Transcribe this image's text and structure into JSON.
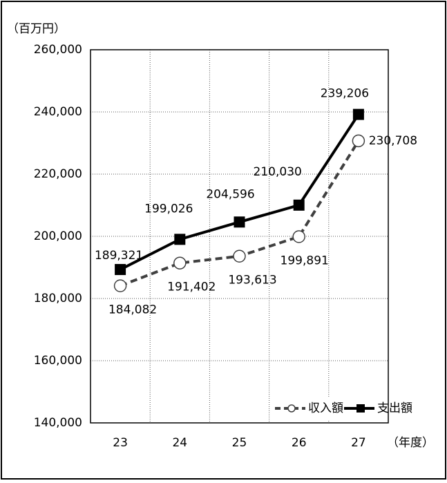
{
  "chart_data": {
    "type": "line",
    "y_label": "（百万円）",
    "x_label": "（年度）",
    "categories": [
      "23",
      "24",
      "25",
      "26",
      "27"
    ],
    "series": [
      {
        "name": "収入額",
        "color": "#404040",
        "line_style": "dashed",
        "marker": "circle",
        "values": [
          184082,
          191402,
          193613,
          199891,
          230708
        ],
        "value_labels": [
          "184,082",
          "191,402",
          "193,613",
          "199,891",
          "230,708"
        ]
      },
      {
        "name": "支出額",
        "color": "#000000",
        "line_style": "solid",
        "marker": "square",
        "values": [
          189321,
          199026,
          204596,
          210030,
          239206
        ],
        "value_labels": [
          "189,321",
          "199,026",
          "204,596",
          "210,030",
          "239,206"
        ]
      }
    ],
    "ylim": [
      140000,
      260000
    ],
    "yticks": [
      {
        "value": 140000,
        "label": "140,000"
      },
      {
        "value": 160000,
        "label": "160,000"
      },
      {
        "value": 180000,
        "label": "180,000"
      },
      {
        "value": 200000,
        "label": "200,000"
      },
      {
        "value": 220000,
        "label": "220,000"
      },
      {
        "value": 240000,
        "label": "240,000"
      },
      {
        "value": 260000,
        "label": "260,000"
      }
    ],
    "grid": true,
    "legend": "lower right"
  }
}
